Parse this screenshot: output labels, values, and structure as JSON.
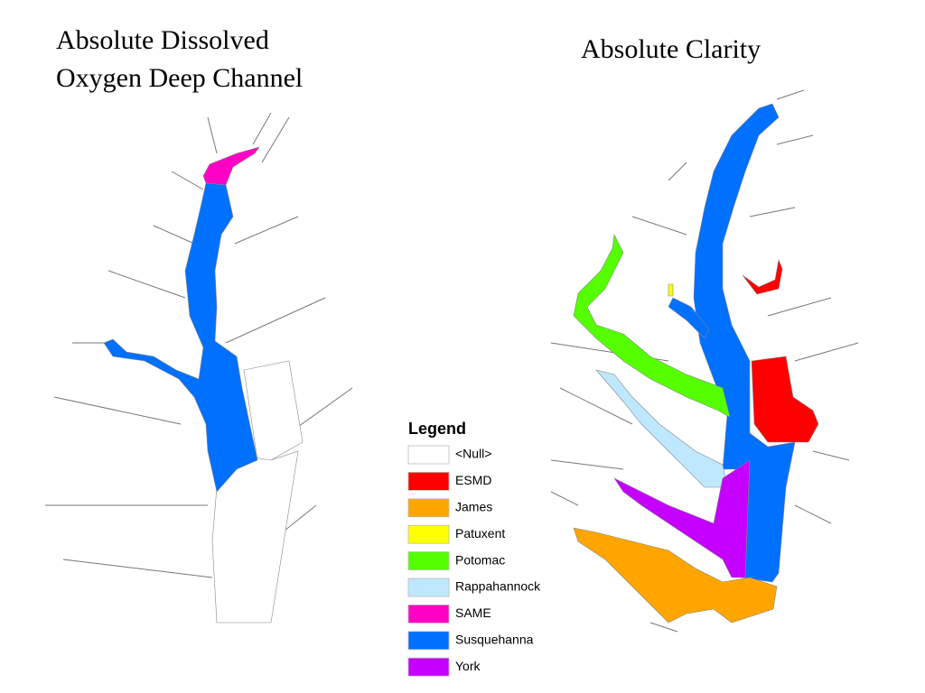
{
  "left_map": {
    "title_lines": [
      "Absolute Dissolved",
      "Oxygen Deep Channel"
    ]
  },
  "right_map": {
    "title": "Absolute Clarity"
  },
  "legend": {
    "title": "Legend",
    "items": [
      {
        "name": "<Null>",
        "color": "#ffffff"
      },
      {
        "name": "ESMD",
        "color": "#ff0000"
      },
      {
        "name": "James",
        "color": "#ffa500"
      },
      {
        "name": "Patuxent",
        "color": "#ffff00"
      },
      {
        "name": "Potomac",
        "color": "#55ff00"
      },
      {
        "name": "Rappahannock",
        "color": "#bee8ff"
      },
      {
        "name": "SAME",
        "color": "#ff00c5"
      },
      {
        "name": "Susquehanna",
        "color": "#0070ff"
      },
      {
        "name": "York",
        "color": "#c500ff"
      }
    ]
  }
}
